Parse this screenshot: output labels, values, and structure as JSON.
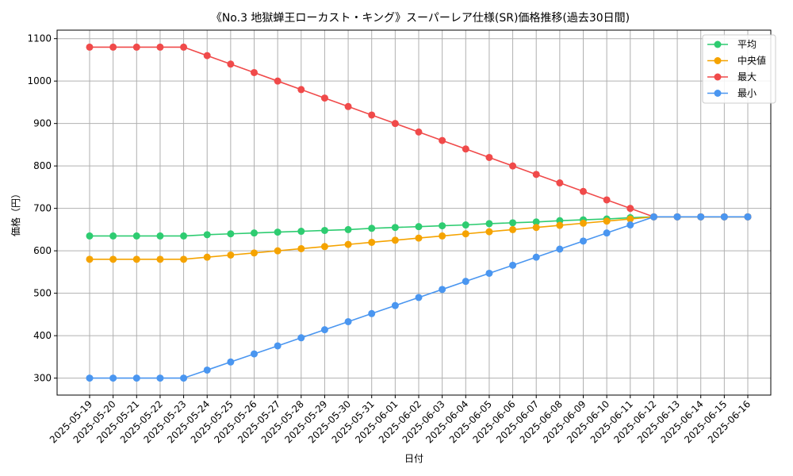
{
  "chart_data": {
    "type": "line",
    "title": "《No.3 地獄蝉王ローカスト・キング》スーパーレア仕様(SR)価格推移(過去30日間)",
    "xlabel": "日付",
    "ylabel": "価格（円）",
    "ylim": [
      260,
      1120
    ],
    "yticks": [
      300,
      400,
      500,
      600,
      700,
      800,
      900,
      1000,
      1100
    ],
    "grid": true,
    "legend_position": "top-right",
    "categories": [
      "2025-05-19",
      "2025-05-20",
      "2025-05-21",
      "2025-05-22",
      "2025-05-23",
      "2025-05-24",
      "2025-05-25",
      "2025-05-26",
      "2025-05-27",
      "2025-05-28",
      "2025-05-29",
      "2025-05-30",
      "2025-05-31",
      "2025-06-01",
      "2025-06-02",
      "2025-06-03",
      "2025-06-04",
      "2025-06-05",
      "2025-06-06",
      "2025-06-07",
      "2025-06-08",
      "2025-06-09",
      "2025-06-10",
      "2025-06-11",
      "2025-06-12",
      "2025-06-13",
      "2025-06-14",
      "2025-06-15",
      "2025-06-16"
    ],
    "series": [
      {
        "name": "平均",
        "color": "#2ecc71",
        "values": [
          635,
          635,
          635,
          635,
          635,
          638,
          640,
          642,
          644,
          646,
          648,
          650,
          653,
          655,
          657,
          659,
          661,
          664,
          666,
          668,
          671,
          673,
          675,
          678,
          680,
          680,
          680,
          680,
          680
        ]
      },
      {
        "name": "中央値",
        "color": "#f5a300",
        "values": [
          580,
          580,
          580,
          580,
          580,
          585,
          590,
          595,
          600,
          605,
          610,
          615,
          620,
          625,
          630,
          635,
          640,
          645,
          650,
          655,
          660,
          665,
          670,
          675,
          680,
          680,
          680,
          680,
          680
        ]
      },
      {
        "name": "最大",
        "color": "#f04a4a",
        "values": [
          1080,
          1080,
          1080,
          1080,
          1080,
          1060,
          1040,
          1020,
          1000,
          980,
          960,
          940,
          920,
          900,
          880,
          860,
          840,
          820,
          800,
          780,
          760,
          740,
          720,
          700,
          680,
          680,
          680,
          680,
          680
        ]
      },
      {
        "name": "最小",
        "color": "#4a96f0",
        "values": [
          300,
          300,
          300,
          300,
          300,
          319,
          338,
          357,
          376,
          395,
          414,
          433,
          452,
          471,
          490,
          509,
          528,
          547,
          566,
          585,
          604,
          623,
          642,
          661,
          680,
          680,
          680,
          680,
          680
        ]
      }
    ]
  }
}
